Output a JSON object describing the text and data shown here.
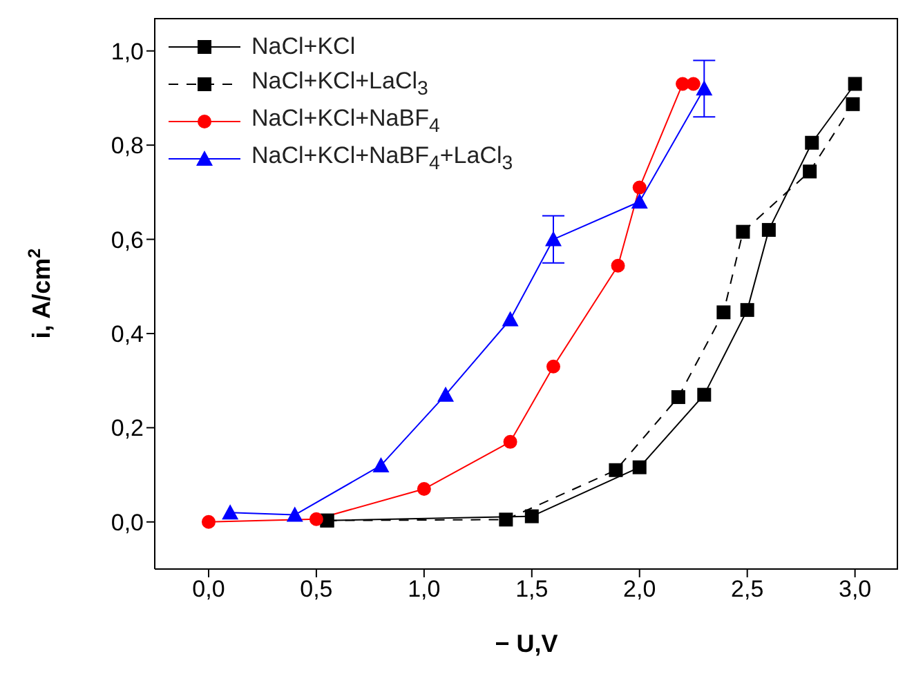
{
  "chart_data": {
    "type": "line",
    "xlabel": "− U,V",
    "ylabel": "i, A/cm$^{2}$",
    "xlim": [
      -0.25,
      3.2
    ],
    "xticks": [
      {
        "value": 0,
        "label": "0,0"
      },
      {
        "value": 0.5,
        "label": "0,5"
      },
      {
        "value": 1,
        "label": "1,0"
      },
      {
        "value": 1.5,
        "label": "1,5"
      },
      {
        "value": 2,
        "label": "2,0"
      },
      {
        "value": 2.5,
        "label": "2,5"
      },
      {
        "value": 3,
        "label": "3,0"
      }
    ],
    "ylim": [
      -0.1,
      1.07
    ],
    "yticks": [
      {
        "value": 0,
        "label": "0,0"
      },
      {
        "value": 0.2,
        "label": "0,2"
      },
      {
        "value": 0.4,
        "label": "0,4"
      },
      {
        "value": 0.6,
        "label": "0,6"
      },
      {
        "value": 0.8,
        "label": "0,8"
      },
      {
        "value": 1,
        "label": "1,0"
      }
    ],
    "legend": "top left",
    "series": [
      {
        "name": "NaCl+KCl",
        "color": "#000000",
        "marker": "square",
        "line_style": "solid",
        "x": [
          0.55,
          1.5,
          2.0,
          2.3,
          2.5,
          2.6,
          2.8,
          3.0
        ],
        "values": [
          0.003,
          0.012,
          0.116,
          0.27,
          0.45,
          0.62,
          0.805,
          0.93
        ]
      },
      {
        "name": "NaCl+KCl+LaCl$_{3}$",
        "color": "#000000",
        "marker": "square",
        "line_style": "dashed",
        "x": [
          0.55,
          1.38,
          1.89,
          2.18,
          2.39,
          2.48,
          2.79,
          2.99
        ],
        "values": [
          0.003,
          0.005,
          0.11,
          0.265,
          0.445,
          0.616,
          0.744,
          0.887
        ]
      },
      {
        "name": "NaCl+KCl+NaBF$_{4}$",
        "color": "#ff0000",
        "marker": "circle",
        "line_style": "solid",
        "x": [
          0,
          0.5,
          1.0,
          1.4,
          1.6,
          1.9,
          2.0,
          2.2,
          2.25
        ],
        "values": [
          0,
          0.006,
          0.07,
          0.17,
          0.33,
          0.544,
          0.71,
          0.93,
          0.93
        ]
      },
      {
        "name": "NaCl+KCl+NaBF$_{4}$+LaCl$_{3}$",
        "color": "#0000ff",
        "marker": "triangle",
        "line_style": "solid",
        "x": [
          0.1,
          0.4,
          0.8,
          1.1,
          1.4,
          1.6,
          2.0,
          2.3
        ],
        "values": [
          0.02,
          0.015,
          0.12,
          0.27,
          0.43,
          0.6,
          0.68,
          0.92
        ],
        "errors": [
          null,
          null,
          null,
          null,
          null,
          0.05,
          null,
          0.06
        ]
      }
    ]
  }
}
